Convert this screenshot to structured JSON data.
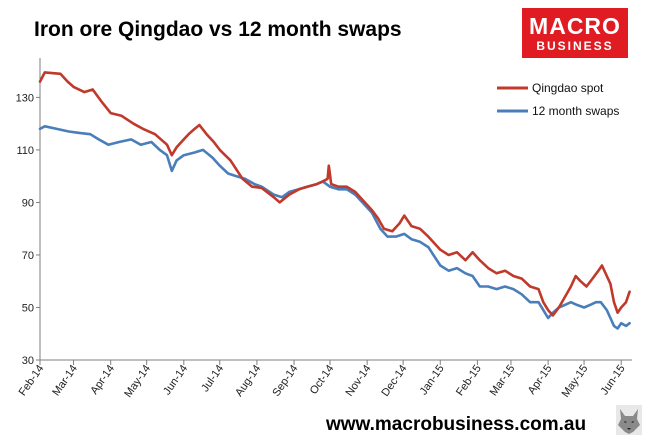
{
  "header": {
    "title": "Iron ore Qingdao vs 12 month swaps"
  },
  "logo": {
    "line1": "MACRO",
    "line2": "BUSINESS",
    "color": "#e11b22"
  },
  "footer": {
    "url": "www.macrobusiness.com.au"
  },
  "mascot_icon": "wolf-icon",
  "chart_data": {
    "type": "line",
    "title": "Iron ore Qingdao vs 12 month swaps",
    "xlabel": "",
    "ylabel": "",
    "ylim": [
      30,
      145
    ],
    "xlim": [
      "2014-02-01",
      "2015-06-10"
    ],
    "y_ticks": [
      130,
      110,
      90,
      70,
      50,
      30
    ],
    "x_tick_labels": [
      "Feb-14",
      "Mar-14",
      "Apr-14",
      "May-14",
      "Jun-14",
      "Jul-14",
      "Aug-14",
      "Sep-14",
      "Oct-14",
      "Nov-14",
      "Dec-14",
      "Jan-15",
      "Feb-15",
      "Mar-15",
      "Apr-15",
      "May-15",
      "Jun-15"
    ],
    "x_tick_dates": [
      "2014-02-01",
      "2014-03-01",
      "2014-04-01",
      "2014-05-01",
      "2014-06-01",
      "2014-07-01",
      "2014-08-01",
      "2014-09-01",
      "2014-10-01",
      "2014-11-01",
      "2014-12-01",
      "2015-01-01",
      "2015-02-01",
      "2015-03-01",
      "2015-04-01",
      "2015-05-01",
      "2015-06-01"
    ],
    "grid": false,
    "legend": "top-right",
    "series": [
      {
        "name": "Qingdao spot",
        "color": "#c0392b",
        "points": [
          [
            "2014-02-01",
            136
          ],
          [
            "2014-02-05",
            139.5
          ],
          [
            "2014-02-18",
            139
          ],
          [
            "2014-02-24",
            136
          ],
          [
            "2014-03-01",
            134
          ],
          [
            "2014-03-10",
            132
          ],
          [
            "2014-03-17",
            133
          ],
          [
            "2014-03-25",
            128
          ],
          [
            "2014-04-01",
            124
          ],
          [
            "2014-04-10",
            123
          ],
          [
            "2014-04-20",
            120
          ],
          [
            "2014-04-28",
            118
          ],
          [
            "2014-05-08",
            116
          ],
          [
            "2014-05-18",
            112
          ],
          [
            "2014-05-22",
            108
          ],
          [
            "2014-05-26",
            111
          ],
          [
            "2014-06-01",
            114
          ],
          [
            "2014-06-05",
            116
          ],
          [
            "2014-06-10",
            118
          ],
          [
            "2014-06-14",
            119.5
          ],
          [
            "2014-06-20",
            116
          ],
          [
            "2014-06-26",
            113
          ],
          [
            "2014-07-01",
            110
          ],
          [
            "2014-07-10",
            106
          ],
          [
            "2014-07-20",
            99
          ],
          [
            "2014-07-28",
            96
          ],
          [
            "2014-08-05",
            95.5
          ],
          [
            "2014-08-15",
            92
          ],
          [
            "2014-08-20",
            90
          ],
          [
            "2014-08-28",
            93
          ],
          [
            "2014-09-05",
            95
          ],
          [
            "2014-09-12",
            96
          ],
          [
            "2014-09-20",
            97
          ],
          [
            "2014-09-25",
            98
          ],
          [
            "2014-09-29",
            99
          ],
          [
            "2014-09-30",
            104
          ],
          [
            "2014-10-02",
            97
          ],
          [
            "2014-10-08",
            96
          ],
          [
            "2014-10-15",
            96
          ],
          [
            "2014-10-22",
            94
          ],
          [
            "2014-10-28",
            91
          ],
          [
            "2014-11-05",
            87
          ],
          [
            "2014-11-10",
            84
          ],
          [
            "2014-11-15",
            80
          ],
          [
            "2014-11-22",
            79
          ],
          [
            "2014-11-28",
            82
          ],
          [
            "2014-12-02",
            85
          ],
          [
            "2014-12-08",
            81
          ],
          [
            "2014-12-15",
            80
          ],
          [
            "2014-12-22",
            77
          ],
          [
            "2015-01-01",
            72
          ],
          [
            "2015-01-08",
            70
          ],
          [
            "2015-01-15",
            71
          ],
          [
            "2015-01-22",
            68
          ],
          [
            "2015-01-28",
            71
          ],
          [
            "2015-02-03",
            68
          ],
          [
            "2015-02-10",
            65
          ],
          [
            "2015-02-17",
            63
          ],
          [
            "2015-02-24",
            64
          ],
          [
            "2015-03-03",
            62
          ],
          [
            "2015-03-10",
            61
          ],
          [
            "2015-03-17",
            58
          ],
          [
            "2015-03-24",
            57
          ],
          [
            "2015-03-28",
            52
          ],
          [
            "2015-04-01",
            49
          ],
          [
            "2015-04-05",
            47
          ],
          [
            "2015-04-10",
            50
          ],
          [
            "2015-04-15",
            54
          ],
          [
            "2015-04-20",
            58
          ],
          [
            "2015-04-24",
            62
          ],
          [
            "2015-04-28",
            60
          ],
          [
            "2015-05-03",
            58
          ],
          [
            "2015-05-08",
            61
          ],
          [
            "2015-05-13",
            64
          ],
          [
            "2015-05-16",
            66
          ],
          [
            "2015-05-20",
            62
          ],
          [
            "2015-05-23",
            59
          ],
          [
            "2015-05-26",
            52
          ],
          [
            "2015-05-29",
            48
          ],
          [
            "2015-06-01",
            50
          ],
          [
            "2015-06-05",
            52
          ],
          [
            "2015-06-08",
            56
          ]
        ]
      },
      {
        "name": "12 month swaps",
        "color": "#4a7ebb",
        "points": [
          [
            "2014-02-01",
            118
          ],
          [
            "2014-02-05",
            119
          ],
          [
            "2014-02-15",
            118
          ],
          [
            "2014-02-25",
            117
          ],
          [
            "2014-03-05",
            116.5
          ],
          [
            "2014-03-15",
            116
          ],
          [
            "2014-03-22",
            114
          ],
          [
            "2014-03-30",
            112
          ],
          [
            "2014-04-08",
            113
          ],
          [
            "2014-04-18",
            114
          ],
          [
            "2014-04-26",
            112
          ],
          [
            "2014-05-05",
            113
          ],
          [
            "2014-05-12",
            110
          ],
          [
            "2014-05-18",
            108
          ],
          [
            "2014-05-22",
            102
          ],
          [
            "2014-05-26",
            106
          ],
          [
            "2014-06-01",
            108
          ],
          [
            "2014-06-10",
            109
          ],
          [
            "2014-06-17",
            110
          ],
          [
            "2014-06-25",
            107
          ],
          [
            "2014-07-01",
            104
          ],
          [
            "2014-07-08",
            101
          ],
          [
            "2014-07-15",
            100
          ],
          [
            "2014-07-22",
            99
          ],
          [
            "2014-07-30",
            97
          ],
          [
            "2014-08-05",
            96
          ],
          [
            "2014-08-15",
            93
          ],
          [
            "2014-08-22",
            92
          ],
          [
            "2014-08-28",
            94
          ],
          [
            "2014-09-05",
            95
          ],
          [
            "2014-09-12",
            96
          ],
          [
            "2014-09-20",
            97
          ],
          [
            "2014-09-25",
            98
          ],
          [
            "2014-10-01",
            96
          ],
          [
            "2014-10-08",
            95
          ],
          [
            "2014-10-15",
            95
          ],
          [
            "2014-10-22",
            93
          ],
          [
            "2014-10-28",
            90
          ],
          [
            "2014-11-05",
            86
          ],
          [
            "2014-11-12",
            80
          ],
          [
            "2014-11-18",
            77
          ],
          [
            "2014-11-25",
            77
          ],
          [
            "2014-12-02",
            78
          ],
          [
            "2014-12-08",
            76
          ],
          [
            "2014-12-15",
            75
          ],
          [
            "2014-12-22",
            73
          ],
          [
            "2015-01-01",
            66
          ],
          [
            "2015-01-08",
            64
          ],
          [
            "2015-01-15",
            65
          ],
          [
            "2015-01-22",
            63
          ],
          [
            "2015-01-28",
            62
          ],
          [
            "2015-02-03",
            58
          ],
          [
            "2015-02-10",
            58
          ],
          [
            "2015-02-17",
            57
          ],
          [
            "2015-02-24",
            58
          ],
          [
            "2015-03-03",
            57
          ],
          [
            "2015-03-10",
            55
          ],
          [
            "2015-03-17",
            52
          ],
          [
            "2015-03-24",
            52
          ],
          [
            "2015-03-28",
            49
          ],
          [
            "2015-04-01",
            46
          ],
          [
            "2015-04-05",
            48
          ],
          [
            "2015-04-10",
            50
          ],
          [
            "2015-04-15",
            51
          ],
          [
            "2015-04-20",
            52
          ],
          [
            "2015-04-25",
            51
          ],
          [
            "2015-05-01",
            50
          ],
          [
            "2015-05-06",
            51
          ],
          [
            "2015-05-11",
            52
          ],
          [
            "2015-05-15",
            52
          ],
          [
            "2015-05-20",
            49
          ],
          [
            "2015-05-23",
            46
          ],
          [
            "2015-05-26",
            43
          ],
          [
            "2015-05-29",
            42
          ],
          [
            "2015-06-01",
            44
          ],
          [
            "2015-06-05",
            43
          ],
          [
            "2015-06-08",
            44
          ]
        ]
      }
    ]
  }
}
